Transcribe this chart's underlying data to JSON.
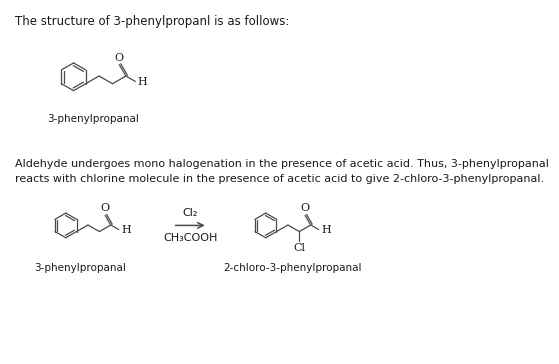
{
  "bg_color": "#ffffff",
  "title_text": "The structure of 3-phenylpropanl is as follows:",
  "title_fontsize": 8.5,
  "paragraph_text": "Aldehyde undergoes mono halogenation in the presence of acetic acid. Thus, 3-phenylpropanal\nreacts with chlorine molecule in the presence of acetic acid to give 2-chloro-3-phenylpropanal.",
  "paragraph_fontsize": 8.0,
  "label1": "3-phenylpropanal",
  "label2": "3-phenylpropanal",
  "label3": "2-chloro-3-phenylpropanal",
  "reagent_top": "Cl₂",
  "reagent_bottom": "CH₃COOH",
  "line_color": "#4a4a4a",
  "text_color": "#1a1a1a",
  "label_fontsize": 7.5,
  "reagent_fontsize": 8.0
}
